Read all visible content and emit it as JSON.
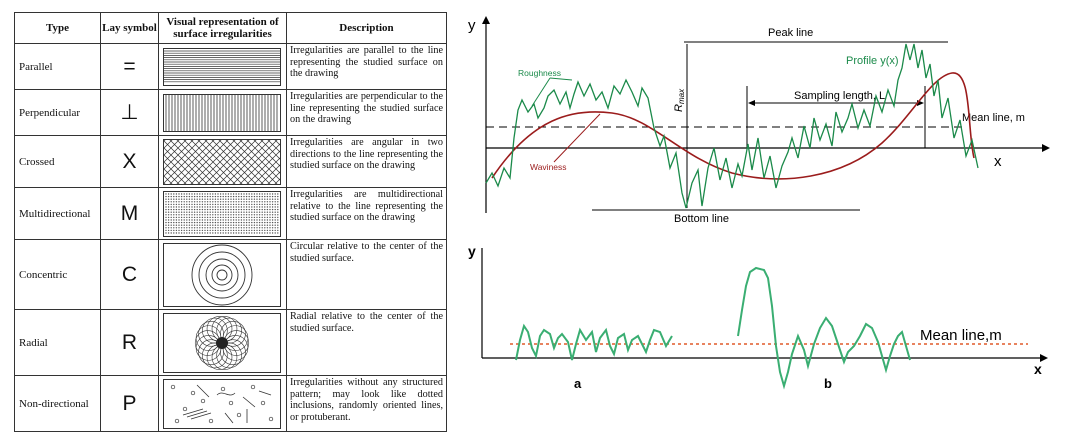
{
  "table": {
    "headers": {
      "type": "Type",
      "lay_symbol": "Lay symbol",
      "visual": "Visual representation of surface irregularities",
      "description": "Description"
    },
    "rows": [
      {
        "type": "Parallel",
        "symbol": "=",
        "pattern": "parallel-lines",
        "description": "Irregularities are parallel to the line representing the studied surface on the drawing"
      },
      {
        "type": "Perpendicular",
        "symbol": "⊥",
        "pattern": "perpendicular-lines",
        "description": "Irregularities are perpendicular to the line representing the studied surface on the drawing"
      },
      {
        "type": "Crossed",
        "symbol": "X",
        "pattern": "crossed-lines",
        "description": "Irregularities are angular in two directions to the line representing the studied surface on the drawing"
      },
      {
        "type": "Multidirectional",
        "symbol": "M",
        "pattern": "multidirectional-dots",
        "description": "Irregularities are multidirectional relative to the line representing the studied surface on the drawing"
      },
      {
        "type": "Concentric",
        "symbol": "C",
        "pattern": "concentric-circles",
        "description": "Circular relative to the center of the studied surface."
      },
      {
        "type": "Radial",
        "symbol": "R",
        "pattern": "radial-circles",
        "description": "Radial relative to the center of the studied surface."
      },
      {
        "type": "Non-directional",
        "symbol": "P",
        "pattern": "random-marks",
        "description": "Irregularities without any structured pattern; may look like dotted inclusions, randomly oriented lines, or protuberant."
      }
    ]
  },
  "profile_diagram": {
    "y_axis": "y",
    "x_axis": "x",
    "peak_line": "Peak line",
    "bottom_line": "Bottom line",
    "rmax": "R",
    "rmax_sub": "max",
    "roughness": "Roughness",
    "waviness": "Waviness",
    "profile": "Profile y(x)",
    "sampling_length": "Sampling length, L",
    "mean_line": "Mean line, m",
    "colors": {
      "roughness": "#1b8a4a",
      "waviness": "#9b1c1c",
      "lines": "#000000"
    }
  },
  "mean_diagram": {
    "y_axis": "y",
    "x_axis": "x",
    "mean_line": "Mean line,m",
    "label_a": "a",
    "label_b": "b",
    "colors": {
      "profile": "#3aae72",
      "mean": "#e05a2a"
    }
  }
}
